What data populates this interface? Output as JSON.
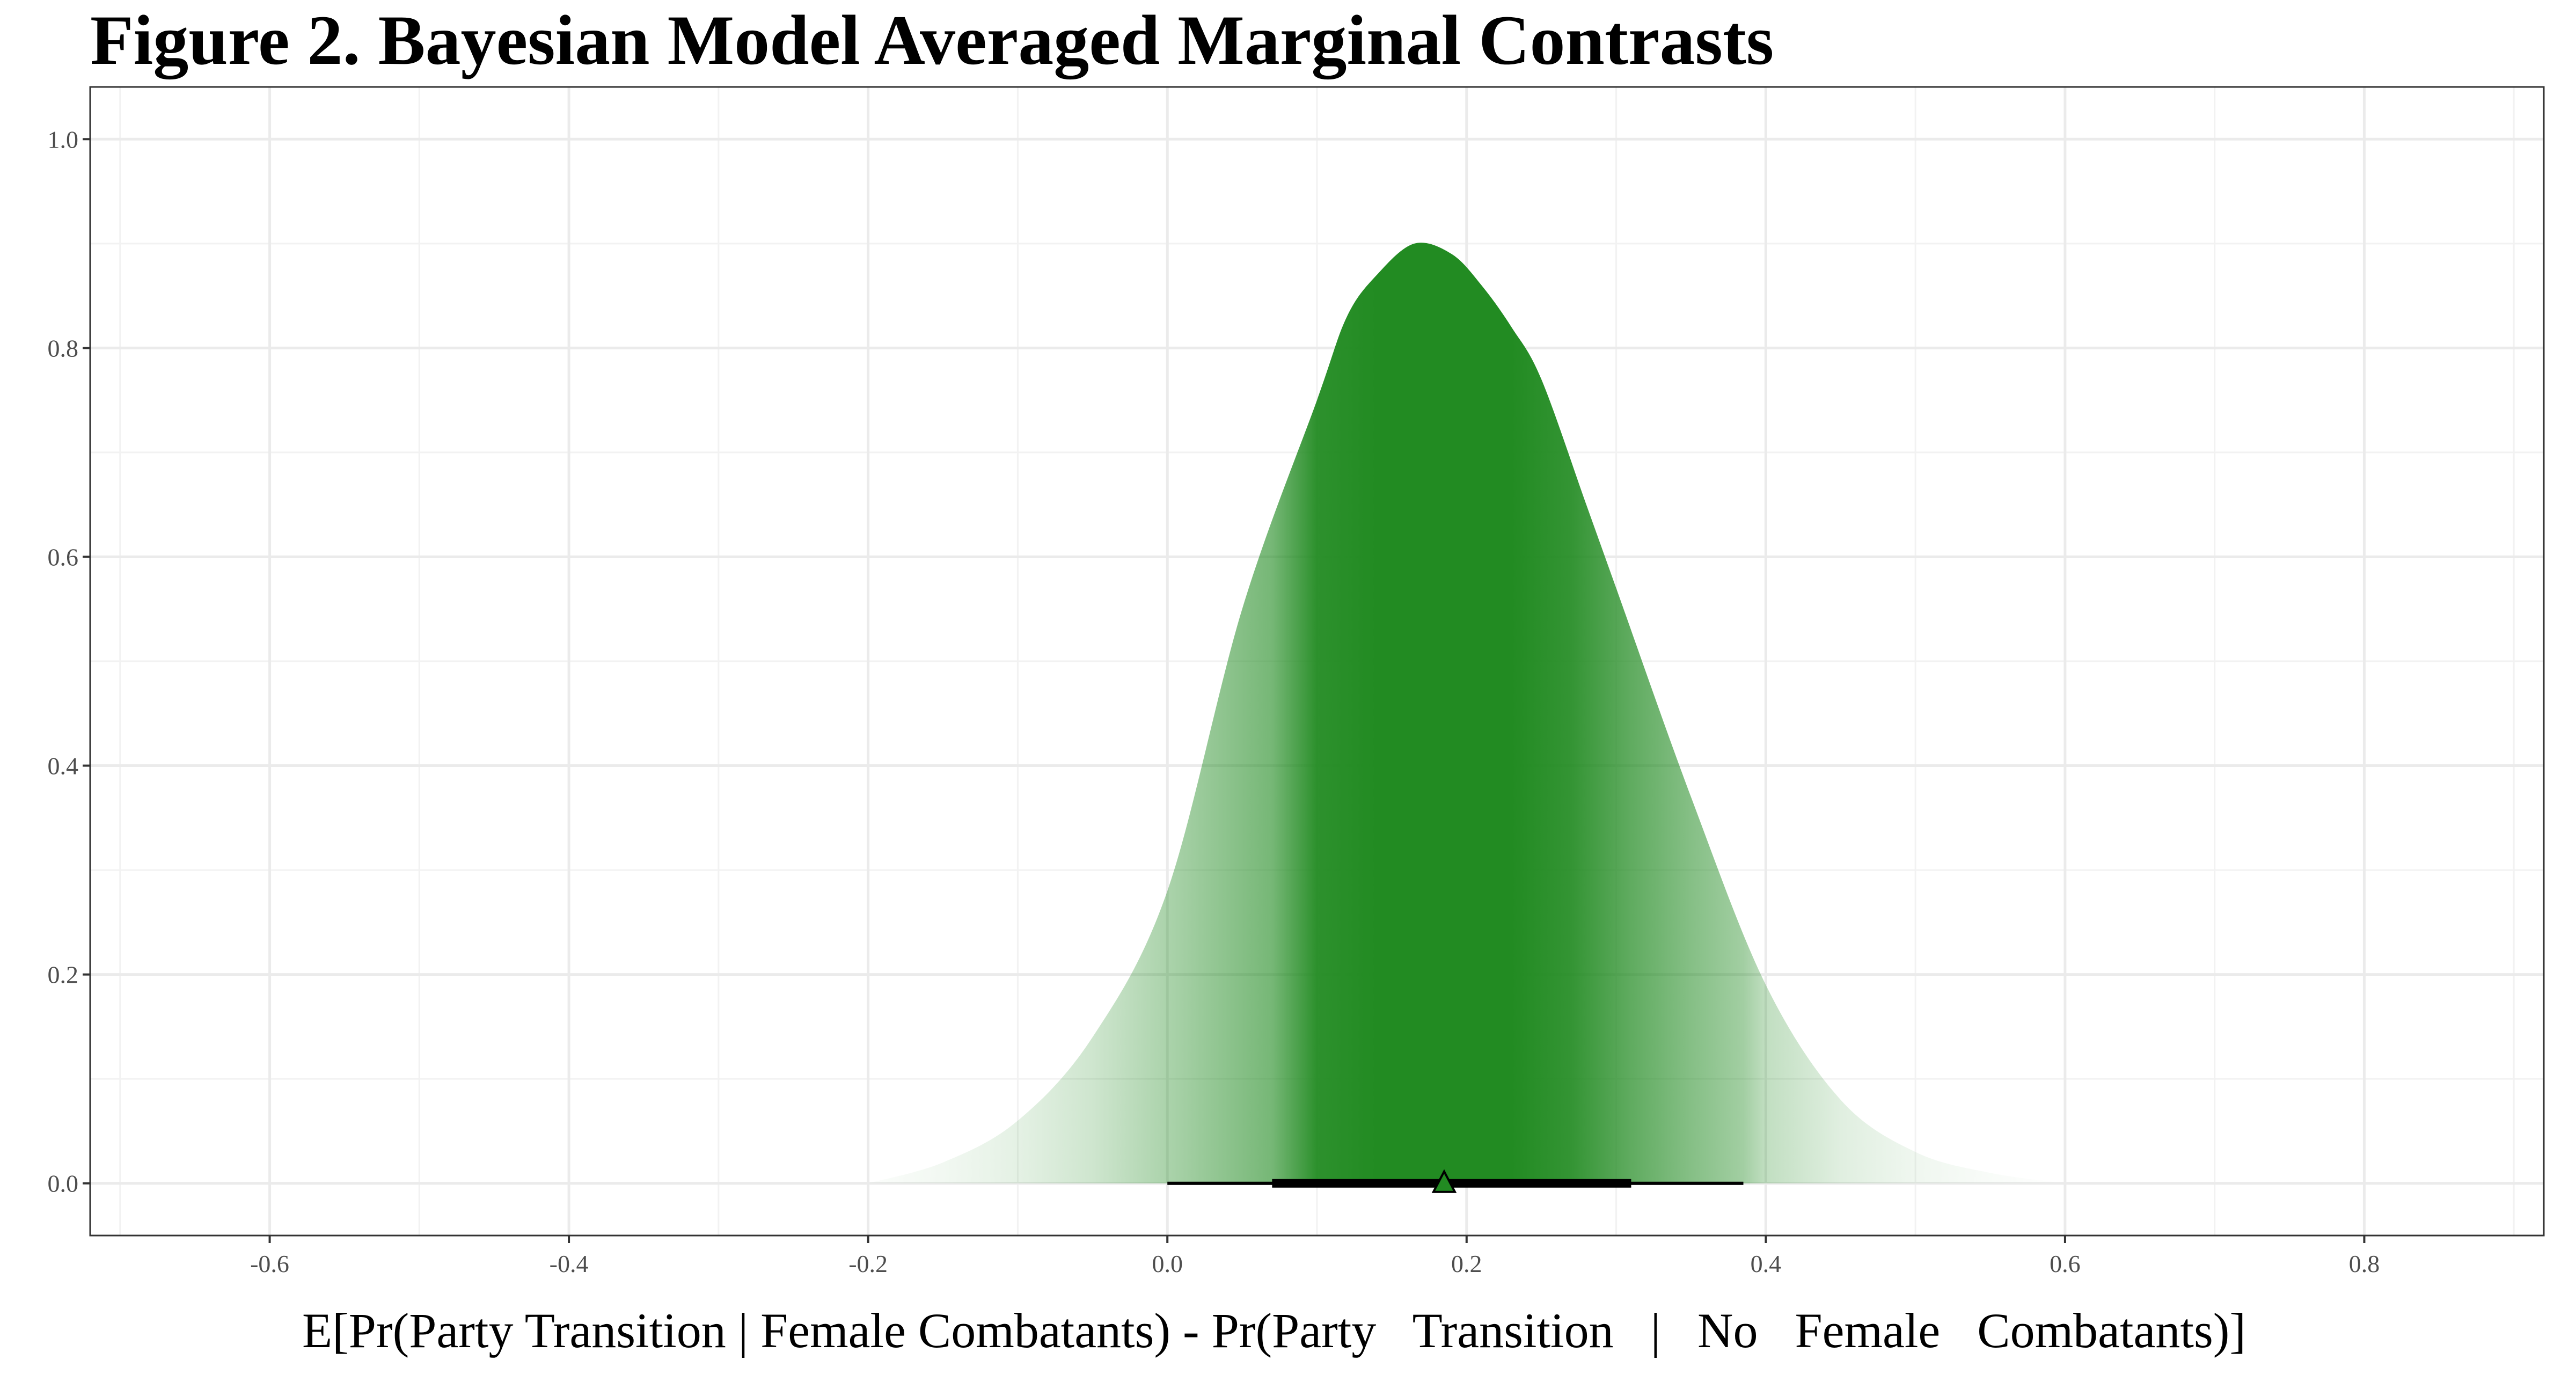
{
  "chart_data": {
    "type": "area",
    "title": "Figure 2. Bayesian Model Averaged Marginal Contrasts",
    "xlabel": "E[Pr(Party Transition | Female Combatants) - Pr(Party   Transition   |   No   Female   Combatants)]",
    "ylabel": "",
    "xlim": [
      -0.72,
      0.92
    ],
    "ylim": [
      -0.05,
      1.05
    ],
    "x_ticks": [
      -0.6,
      -0.4,
      -0.2,
      0.0,
      0.2,
      0.4,
      0.6,
      0.8
    ],
    "x_tick_labels": [
      "-0.6",
      "-0.4",
      "-0.2",
      "0.0",
      "0.2",
      "0.4",
      "0.6",
      "0.8"
    ],
    "y_ticks": [
      0.0,
      0.2,
      0.4,
      0.6,
      0.8,
      1.0
    ],
    "y_tick_labels": [
      "0.0",
      "0.2",
      "0.4",
      "0.6",
      "0.8",
      "1.0"
    ],
    "grid": true,
    "density": {
      "x": [
        -0.2,
        -0.15,
        -0.1,
        -0.05,
        0.0,
        0.05,
        0.1,
        0.12,
        0.14,
        0.165,
        0.19,
        0.21,
        0.23,
        0.25,
        0.28,
        0.3,
        0.35,
        0.4,
        0.45,
        0.5,
        0.55,
        0.6
      ],
      "y": [
        0.0,
        0.02,
        0.06,
        0.14,
        0.28,
        0.55,
        0.75,
        0.83,
        0.87,
        0.9,
        0.89,
        0.86,
        0.82,
        0.77,
        0.65,
        0.57,
        0.37,
        0.19,
        0.08,
        0.03,
        0.01,
        0.0
      ],
      "color": "#228B22"
    },
    "point_estimate": 0.185,
    "interval_inner": [
      0.07,
      0.31
    ],
    "interval_outer": [
      0.0,
      0.385
    ]
  }
}
